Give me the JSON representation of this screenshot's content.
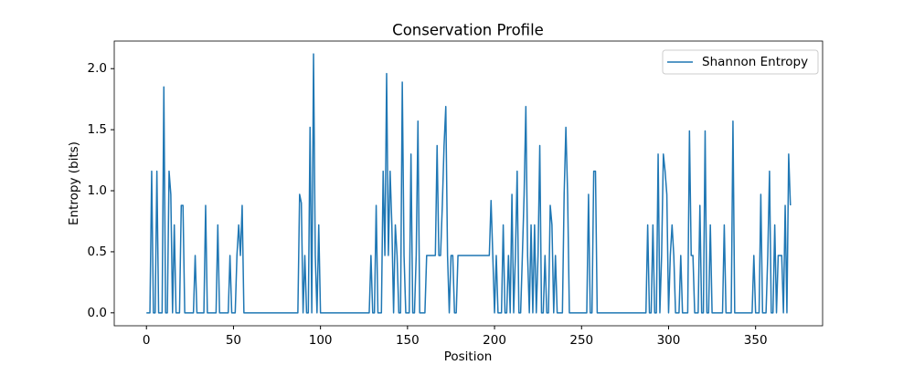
{
  "chart_data": {
    "type": "line",
    "title": "Conservation Profile",
    "xlabel": "Position",
    "ylabel": "Entropy (bits)",
    "x": [
      0,
      1,
      2,
      3,
      4,
      5,
      6,
      7,
      8,
      9,
      10,
      11,
      12,
      13,
      14,
      15,
      16,
      17,
      18,
      19,
      20,
      21,
      22,
      23,
      24,
      25,
      26,
      27,
      28,
      29,
      30,
      31,
      32,
      33,
      34,
      35,
      36,
      37,
      38,
      39,
      40,
      41,
      42,
      43,
      44,
      45,
      46,
      47,
      48,
      49,
      50,
      51,
      52,
      53,
      54,
      55,
      56,
      57,
      58,
      59,
      60,
      61,
      62,
      63,
      64,
      65,
      66,
      67,
      68,
      69,
      70,
      71,
      72,
      73,
      74,
      75,
      76,
      77,
      78,
      79,
      80,
      81,
      82,
      83,
      84,
      85,
      86,
      87,
      88,
      89,
      90,
      91,
      92,
      93,
      94,
      95,
      96,
      97,
      98,
      99,
      100,
      101,
      102,
      103,
      104,
      105,
      106,
      107,
      108,
      109,
      110,
      111,
      112,
      113,
      114,
      115,
      116,
      117,
      118,
      119,
      120,
      121,
      122,
      123,
      124,
      125,
      126,
      127,
      128,
      129,
      130,
      131,
      132,
      133,
      134,
      135,
      136,
      137,
      138,
      139,
      140,
      141,
      142,
      143,
      144,
      145,
      146,
      147,
      148,
      149,
      150,
      151,
      152,
      153,
      154,
      155,
      156,
      157,
      158,
      159,
      160,
      161,
      162,
      163,
      164,
      165,
      166,
      167,
      168,
      169,
      170,
      171,
      172,
      173,
      174,
      175,
      176,
      177,
      178,
      179,
      180,
      181,
      182,
      183,
      184,
      185,
      186,
      187,
      188,
      189,
      190,
      191,
      192,
      193,
      194,
      195,
      196,
      197,
      198,
      199,
      200,
      201,
      202,
      203,
      204,
      205,
      206,
      207,
      208,
      209,
      210,
      211,
      212,
      213,
      214,
      215,
      216,
      217,
      218,
      219,
      220,
      221,
      222,
      223,
      224,
      225,
      226,
      227,
      228,
      229,
      230,
      231,
      232,
      233,
      234,
      235,
      236,
      237,
      238,
      239,
      240,
      241,
      242,
      243,
      244,
      245,
      246,
      247,
      248,
      249,
      250,
      251,
      252,
      253,
      254,
      255,
      256,
      257,
      258,
      259,
      260,
      261,
      262,
      263,
      264,
      265,
      266,
      267,
      268,
      269,
      270,
      271,
      272,
      273,
      274,
      275,
      276,
      277,
      278,
      279,
      280,
      281,
      282,
      283,
      284,
      285,
      286,
      287,
      288,
      289,
      290,
      291,
      292,
      293,
      294,
      295,
      296,
      297,
      298,
      299,
      300,
      301,
      302,
      303,
      304,
      305,
      306,
      307,
      308,
      309,
      310,
      311,
      312,
      313,
      314,
      315,
      316,
      317,
      318,
      319,
      320,
      321,
      322,
      323,
      324,
      325,
      326,
      327,
      328,
      329,
      330,
      331,
      332,
      333,
      334,
      335,
      336,
      337,
      338,
      339,
      340,
      341,
      342,
      343,
      344,
      345,
      346,
      347,
      348,
      349,
      350,
      351,
      352,
      353,
      354,
      355,
      356,
      357,
      358,
      359,
      360,
      361,
      362,
      363,
      364,
      365,
      366,
      367,
      368,
      369,
      370
    ],
    "series": [
      {
        "name": "Shannon Entropy",
        "color": "#1f77b4",
        "values": [
          0,
          0,
          0,
          1.16,
          0,
          0,
          1.16,
          0,
          0,
          0,
          1.85,
          0,
          0,
          1.16,
          0.97,
          0,
          0.72,
          0,
          0,
          0,
          0.88,
          0.88,
          0,
          0,
          0,
          0,
          0,
          0,
          0.47,
          0,
          0,
          0,
          0,
          0,
          0.88,
          0,
          0,
          0,
          0,
          0,
          0,
          0.72,
          0,
          0,
          0,
          0,
          0,
          0,
          0.47,
          0,
          0,
          0,
          0.47,
          0.72,
          0.47,
          0.88,
          0,
          0,
          0,
          0,
          0,
          0,
          0,
          0,
          0,
          0,
          0,
          0,
          0,
          0,
          0,
          0,
          0,
          0,
          0,
          0,
          0,
          0,
          0,
          0,
          0,
          0,
          0,
          0,
          0,
          0,
          0,
          0,
          0.97,
          0.9,
          0,
          0.47,
          0,
          0,
          1.52,
          0,
          2.12,
          0.47,
          0,
          0.72,
          0,
          0,
          0,
          0,
          0,
          0,
          0,
          0,
          0,
          0,
          0,
          0,
          0,
          0,
          0,
          0,
          0,
          0,
          0,
          0,
          0,
          0,
          0,
          0,
          0,
          0,
          0,
          0,
          0,
          0.47,
          0,
          0,
          0.88,
          0,
          0,
          0,
          1.16,
          0.47,
          1.96,
          0.47,
          1.16,
          0.72,
          0,
          0.72,
          0.47,
          0,
          0,
          1.89,
          0.47,
          0,
          0,
          0,
          1.3,
          0,
          0,
          0.47,
          1.57,
          0,
          0,
          0,
          0,
          0.47,
          0.47,
          0.47,
          0.47,
          0.47,
          0.47,
          1.37,
          0.47,
          0.47,
          0.88,
          1.37,
          1.69,
          0.47,
          0,
          0.47,
          0.47,
          0,
          0,
          0.47,
          0.47,
          0.47,
          0.47,
          0.47,
          0.47,
          0.47,
          0.47,
          0.47,
          0.47,
          0.47,
          0.47,
          0.47,
          0.47,
          0.47,
          0.47,
          0.47,
          0.47,
          0.47,
          0.92,
          0.47,
          0,
          0.47,
          0,
          0,
          0,
          0.72,
          0,
          0,
          0.47,
          0,
          0.97,
          0,
          0.47,
          1.16,
          0,
          0,
          0.47,
          0.97,
          1.69,
          0.47,
          0,
          0.72,
          0,
          0.72,
          0,
          0.47,
          1.37,
          0,
          0,
          0.47,
          0,
          0,
          0.88,
          0.72,
          0,
          0.47,
          0,
          0,
          0,
          0,
          0.97,
          1.52,
          0.97,
          0,
          0,
          0,
          0,
          0,
          0,
          0,
          0,
          0,
          0,
          0,
          0.97,
          0,
          0,
          1.16,
          1.16,
          0,
          0,
          0,
          0,
          0,
          0,
          0,
          0,
          0,
          0,
          0,
          0,
          0,
          0,
          0,
          0,
          0,
          0,
          0,
          0,
          0,
          0,
          0,
          0,
          0,
          0,
          0,
          0,
          0,
          0.72,
          0,
          0,
          0.72,
          0,
          0,
          1.3,
          0,
          0.47,
          1.3,
          1.16,
          0.97,
          0,
          0.47,
          0.72,
          0.47,
          0,
          0,
          0,
          0.47,
          0,
          0,
          0,
          0,
          1.49,
          0.47,
          0.47,
          0,
          0,
          0,
          0.88,
          0,
          0,
          1.49,
          0,
          0,
          0.72,
          0,
          0,
          0,
          0,
          0,
          0,
          0,
          0.72,
          0,
          0,
          0,
          0,
          1.57,
          0,
          0,
          0,
          0,
          0,
          0,
          0,
          0,
          0,
          0,
          0,
          0.47,
          0,
          0,
          0,
          0.97,
          0,
          0,
          0,
          0.47,
          1.16,
          0,
          0,
          0.72,
          0,
          0.47,
          0.47,
          0.47,
          0,
          0.88,
          0,
          1.3,
          0.88
        ]
      }
    ],
    "xlim": [
      -18.5,
      388.5
    ],
    "xticks": [
      0,
      50,
      100,
      150,
      200,
      250,
      300,
      350
    ],
    "ylim": [
      -0.106,
      2.226
    ],
    "yticks": [
      {
        "value": 0,
        "label": "0.0"
      },
      0.5,
      {
        "value": 1,
        "label": "1.0"
      },
      1.5,
      {
        "value": 2,
        "label": "2.0"
      }
    ],
    "grid": false,
    "legend": "upper right"
  }
}
